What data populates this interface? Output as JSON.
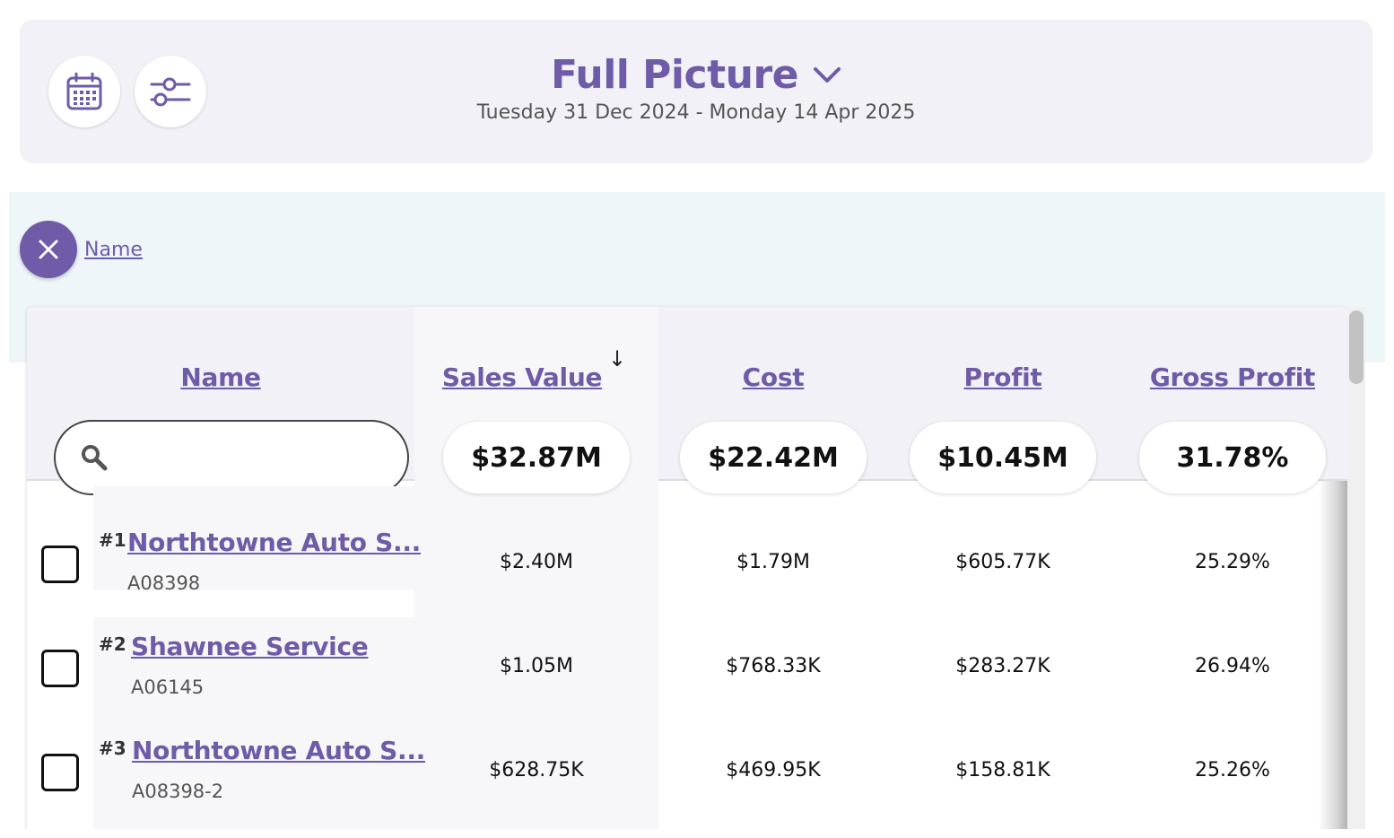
{
  "header": {
    "title": "Full Picture",
    "date_range": "Tuesday 31 Dec 2024 - Monday 14 Apr 2025",
    "calendar_icon": "calendar-icon",
    "filters_icon": "sliders-icon"
  },
  "active_filter": {
    "label": "Name"
  },
  "table": {
    "columns": [
      "Name",
      "Sales Value",
      "Cost",
      "Profit",
      "Gross Profit"
    ],
    "sorted_column": "Sales Value",
    "sort_direction": "descending",
    "search": {
      "placeholder": "",
      "value": ""
    },
    "totals": [
      "$32.87M",
      "$22.42M",
      "$10.45M",
      "31.78%"
    ],
    "rows": [
      {
        "rank": "#1",
        "name": "Northtowne Auto S...",
        "code": "A08398",
        "sales": "$2.40M",
        "cost": "$1.79M",
        "profit": "$605.77K",
        "gross_profit": "25.29%"
      },
      {
        "rank": "#2",
        "name": "Shawnee Service",
        "code": "A06145",
        "sales": "$1.05M",
        "cost": "$768.33K",
        "profit": "$283.27K",
        "gross_profit": "26.94%"
      },
      {
        "rank": "#3",
        "name": "Northtowne Auto S...",
        "code": "A08398-2",
        "sales": "$628.75K",
        "cost": "$469.95K",
        "profit": "$158.81K",
        "gross_profit": "25.26%"
      }
    ]
  },
  "colors": {
    "accent": "#6f5ba7",
    "header_bg": "#f2f1f8",
    "filter_band_bg": "#eef6fa"
  }
}
